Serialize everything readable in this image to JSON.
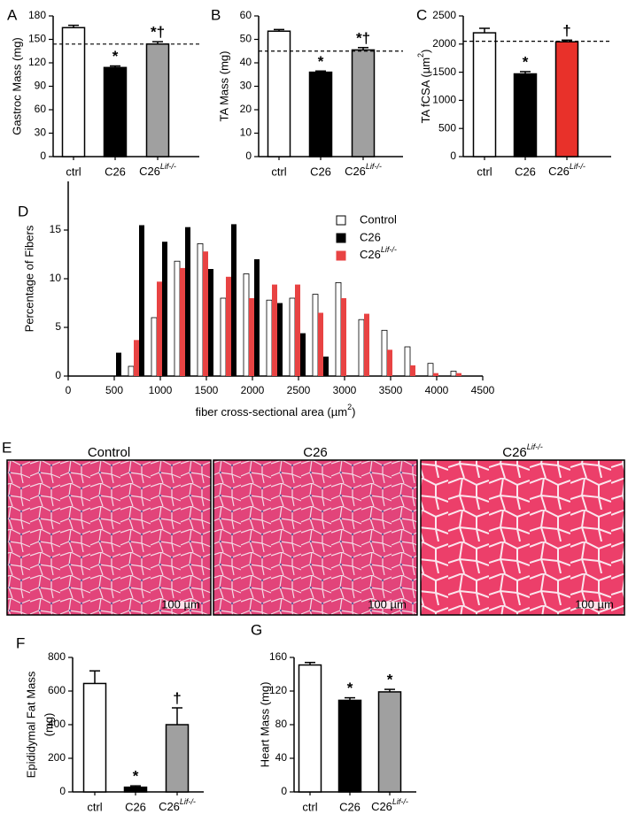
{
  "chart_data": [
    {
      "type": "bar",
      "panel": "A",
      "y_label": "Gastroc Mass (mg)",
      "categories": [
        "ctrl",
        "C26",
        {
          "text": "C26",
          "sup": "Lif-/-"
        }
      ],
      "values": [
        165,
        114,
        144
      ],
      "errors": [
        3,
        2,
        3
      ],
      "colors": [
        "#ffffff",
        "#000000",
        "#a0a0a0"
      ],
      "annotations": [
        null,
        "*",
        "*†"
      ],
      "reference_line": 144,
      "ylim": [
        0,
        180
      ],
      "yticks": [
        0,
        30,
        60,
        90,
        120,
        150,
        180
      ]
    },
    {
      "type": "bar",
      "panel": "B",
      "y_label": "TA Mass (mg)",
      "categories": [
        "ctrl",
        "C26",
        {
          "text": "C26",
          "sup": "Lif-/-"
        }
      ],
      "values": [
        53.5,
        36,
        45.5
      ],
      "errors": [
        0.7,
        0.5,
        1
      ],
      "colors": [
        "#ffffff",
        "#000000",
        "#a0a0a0"
      ],
      "annotations": [
        null,
        "*",
        "*†"
      ],
      "reference_line": 45,
      "ylim": [
        0,
        60
      ],
      "yticks": [
        0,
        10,
        20,
        30,
        40,
        50,
        60
      ]
    },
    {
      "type": "bar",
      "panel": "C",
      "y_label": {
        "text": "TA fCSA (µm",
        "sup": "2",
        "tail": ")"
      },
      "categories": [
        "ctrl",
        "C26",
        {
          "text": "C26",
          "sup": "Lif-/-"
        }
      ],
      "values": [
        2200,
        1470,
        2040
      ],
      "errors": [
        80,
        40,
        30
      ],
      "colors": [
        "#ffffff",
        "#000000",
        "#e8312a"
      ],
      "annotations": [
        null,
        "*",
        "†"
      ],
      "reference_line": 2050,
      "ylim": [
        0,
        2500
      ],
      "yticks": [
        0,
        500,
        1000,
        1500,
        2000,
        2500
      ]
    },
    {
      "type": "bar",
      "panel": "D",
      "y_label": "Percentage of Fibers",
      "x_label": {
        "text": "fiber cross-sectional area (µm",
        "sup": "2",
        "tail": ")"
      },
      "x": [
        500,
        750,
        1000,
        1250,
        1500,
        1750,
        2000,
        2250,
        2500,
        2750,
        3000,
        3250,
        3500,
        3750,
        4000,
        4250
      ],
      "series": [
        {
          "name": "Control",
          "color": "#ffffff",
          "values": [
            0,
            1.0,
            6.0,
            11.8,
            13.6,
            8.0,
            10.5,
            7.8,
            8.0,
            8.4,
            9.6,
            5.8,
            4.7,
            3.0,
            1.3,
            0.5
          ]
        },
        {
          "name": "C26",
          "color": "#000000",
          "values": [
            2.4,
            15.5,
            13.8,
            15.3,
            11.0,
            15.6,
            12.0,
            7.5,
            4.4,
            2.0,
            0,
            0,
            0,
            0,
            0,
            0
          ]
        },
        {
          "name": {
            "text": "C26",
            "sup": "Lif-/-"
          },
          "color": "#e84343",
          "values": [
            0,
            3.7,
            9.7,
            11.1,
            12.8,
            10.2,
            8.0,
            9.4,
            9.4,
            6.5,
            8.0,
            6.4,
            2.7,
            1.1,
            0.3,
            0.3
          ]
        }
      ],
      "xlim": [
        0,
        4500
      ],
      "xticks": [
        0,
        500,
        1000,
        1500,
        2000,
        2500,
        3000,
        3500,
        4000,
        4500
      ],
      "ylim": [
        0,
        20
      ],
      "yticks": [
        0,
        5,
        10,
        15
      ]
    },
    {
      "type": "bar",
      "panel": "F",
      "y_label": [
        "Epididymal Fat Mass",
        "(mg)"
      ],
      "categories": [
        "ctrl",
        "C26",
        {
          "text": "C26",
          "sup": "Lif-/-"
        }
      ],
      "values": [
        645,
        28,
        400
      ],
      "errors": [
        75,
        8,
        100
      ],
      "colors": [
        "#ffffff",
        "#000000",
        "#a0a0a0"
      ],
      "annotations": [
        null,
        "*",
        "†"
      ],
      "ylim": [
        0,
        800
      ],
      "yticks": [
        0,
        200,
        400,
        600,
        800
      ]
    },
    {
      "type": "bar",
      "panel": "G",
      "y_label": "Heart Mass (mg)",
      "categories": [
        "ctrl",
        "C26",
        {
          "text": "C26",
          "sup": "Lif-/-"
        }
      ],
      "values": [
        151,
        109,
        119
      ],
      "errors": [
        3,
        3,
        3
      ],
      "colors": [
        "#ffffff",
        "#000000",
        "#a0a0a0"
      ],
      "annotations": [
        null,
        "*",
        "*"
      ],
      "ylim": [
        0,
        160
      ],
      "yticks": [
        0,
        40,
        80,
        120,
        160
      ]
    }
  ],
  "histology": {
    "panel": "E",
    "images": [
      {
        "title": "Control",
        "scale_bar": "100 µm"
      },
      {
        "title": "C26",
        "scale_bar": "100 µm"
      },
      {
        "title": {
          "text": "C26",
          "sup": "Lif-/-"
        },
        "scale_bar": "100 µm"
      }
    ]
  }
}
